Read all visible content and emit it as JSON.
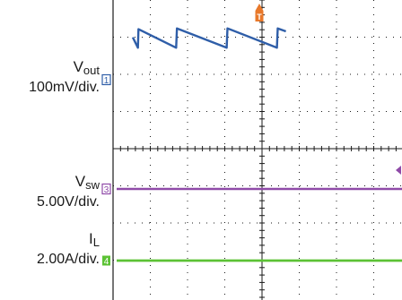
{
  "labels": {
    "vout": {
      "name": "V",
      "sub": "out",
      "scale": "100mV/div."
    },
    "vsw": {
      "name": "V",
      "sub": "sw",
      "scale": "5.00V/div."
    },
    "il": {
      "name": "I",
      "sub": "L",
      "scale": "2.00A/div."
    }
  },
  "markers": {
    "trigger": "T",
    "ch1": "1",
    "ch3": "3",
    "ch4": "4"
  },
  "chart_data": {
    "type": "line",
    "title": "",
    "grid": true,
    "grid_divisions": {
      "x": 8,
      "y": 8
    },
    "series": [
      {
        "name": "Vout",
        "scale": "100mV/div.",
        "color": "#2f5ea8",
        "shape": "sawtooth",
        "x": [
          0.0,
          0.2,
          0.22,
          1.7,
          1.73,
          3.68,
          3.71,
          5.65,
          5.68,
          6.0
        ],
        "y": [
          1.14,
          0.86,
          1.36,
          0.86,
          1.38,
          0.86,
          1.38,
          0.86,
          1.38,
          1.3
        ],
        "note_units": "x in divisions, y in divisions relative to ch1 ground marker"
      },
      {
        "name": "Vsw",
        "scale": "5.00V/div.",
        "color": "#8f4aa8",
        "x": [
          0.0,
          6.0
        ],
        "y": [
          0.0,
          0.0
        ]
      },
      {
        "name": "IL",
        "scale": "2.00A/div.",
        "color": "#5cc235",
        "x": [
          0.0,
          6.0
        ],
        "y": [
          0.0,
          0.0
        ]
      }
    ],
    "colors": {
      "vout": "#2f5ea8",
      "vsw": "#8f4aa8",
      "il": "#5cc235",
      "trigger": "#e8782a",
      "grid": "#1a1a1a"
    }
  }
}
